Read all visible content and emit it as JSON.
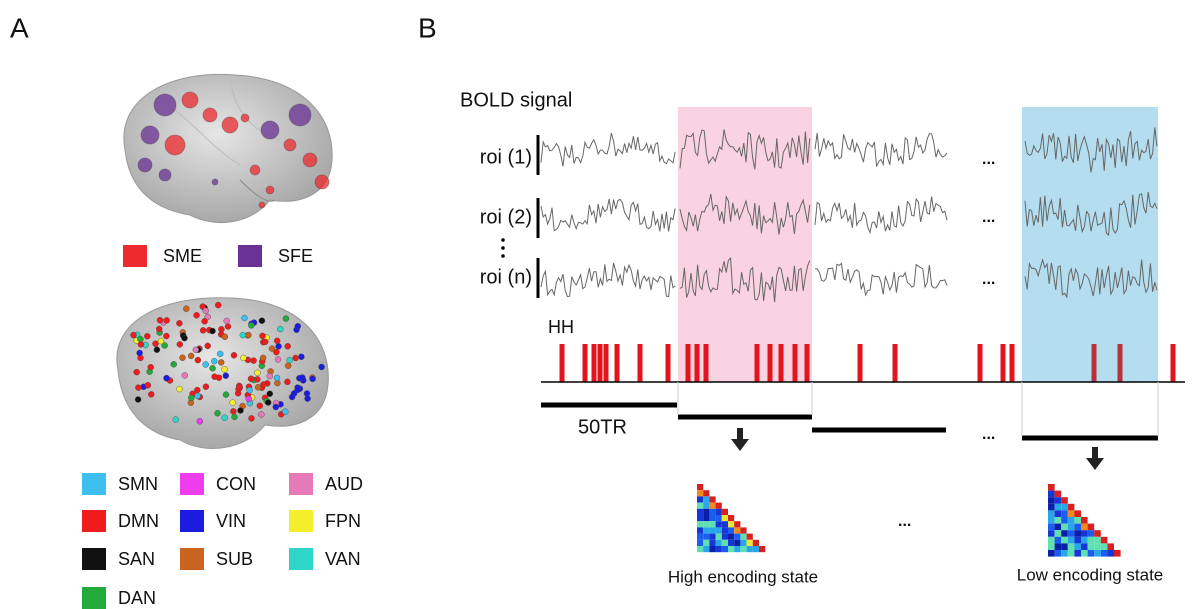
{
  "panels": {
    "a": "A",
    "b": "B"
  },
  "effect_legend": [
    {
      "label": "SME",
      "color": "#ee2a2e"
    },
    {
      "label": "SFE",
      "color": "#6b3296"
    }
  ],
  "network_legend": [
    {
      "label": "SMN",
      "color": "#3ec0ee"
    },
    {
      "label": "CON",
      "color": "#ee3cee"
    },
    {
      "label": "AUD",
      "color": "#e67ab8"
    },
    {
      "label": "DMN",
      "color": "#ee1c1c"
    },
    {
      "label": "VIN",
      "color": "#1c1ce0"
    },
    {
      "label": "FPN",
      "color": "#f5ee2a"
    },
    {
      "label": "SAN",
      "color": "#111111"
    },
    {
      "label": "SUB",
      "color": "#c8641e"
    },
    {
      "label": "VAN",
      "color": "#2ed6c8"
    },
    {
      "label": "DAN",
      "color": "#22aa3a"
    }
  ],
  "signal_title": "BOLD signal",
  "rois": [
    "roi (1)",
    "roi (2)",
    "roi (n)"
  ],
  "ellipsis": "...",
  "event_label": "HH",
  "window_label": "50TR",
  "states": [
    "High encoding state",
    "Low encoding state"
  ]
}
